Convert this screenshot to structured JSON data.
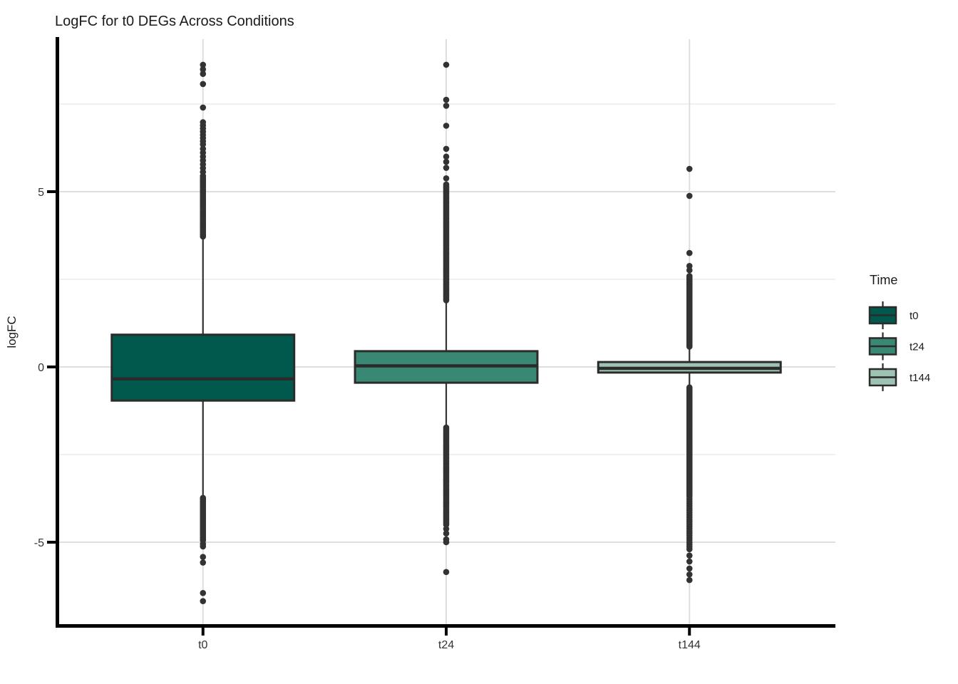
{
  "page": {
    "background": "#ffffff"
  },
  "chart_data": {
    "type": "boxplot",
    "title": "LogFC for t0 DEGs Across Conditions",
    "xlabel": "",
    "ylabel": "logFC",
    "categories": [
      "t0",
      "t24",
      "t144"
    ],
    "y_axis": {
      "major_ticks": [
        5,
        0,
        -5
      ],
      "major_tick_labels": [
        "5",
        "0",
        "-5"
      ],
      "minor_ticks": [
        7.5,
        2.5,
        -2.5
      ],
      "ylim": [
        -7.38,
        9.35
      ]
    },
    "grid": {
      "major_color": "#dedede",
      "minor_color": "#ececec",
      "vertical_major": true
    },
    "style": {
      "axis_color": "#000000",
      "box_stroke": "#2b2b2b",
      "whisker_color": "#333333",
      "outlier_color": "#333333"
    },
    "legend": {
      "title": "Time",
      "position": "right"
    },
    "groups": [
      {
        "name": "t0",
        "fill": "#00594C",
        "stats": {
          "q1": -0.96,
          "median": -0.34,
          "q3": 0.92,
          "whisker_low": -3.7,
          "whisker_high": 3.7
        },
        "outliers": {
          "points": [
            8.62,
            8.49,
            8.36,
            8.07,
            7.4,
            -5.05,
            -5.12,
            -5.42,
            -5.58,
            -6.45,
            -6.68
          ],
          "ranges": [
            {
              "from": 6.35,
              "to": 7.0,
              "step": 0.09
            },
            {
              "from": 5.45,
              "to": 6.28,
              "step": 0.11
            },
            {
              "from": 3.72,
              "to": 5.4,
              "step": 0.042
            },
            {
              "from": -4.95,
              "to": -3.72,
              "step": 0.045
            }
          ]
        }
      },
      {
        "name": "t24",
        "fill": "#398874",
        "stats": {
          "q1": -0.45,
          "median": 0.03,
          "q3": 0.45,
          "whisker_low": -1.67,
          "whisker_high": 1.87
        },
        "outliers": {
          "points": [
            8.62,
            7.62,
            7.45,
            6.88,
            6.22,
            6.0,
            5.85,
            5.68,
            5.38,
            -4.62,
            -4.75,
            -4.92,
            -5.0,
            -5.85
          ],
          "ranges": [
            {
              "from": 1.9,
              "to": 5.22,
              "step": 0.038
            },
            {
              "from": -4.5,
              "to": -1.7,
              "step": 0.042
            }
          ]
        }
      },
      {
        "name": "t144",
        "fill": "#9EC3B3",
        "stats": {
          "q1": -0.16,
          "median": -0.04,
          "q3": 0.14,
          "whisker_low": -0.52,
          "whisker_high": 0.51
        },
        "outliers": {
          "points": [
            5.65,
            4.88,
            3.25,
            2.88,
            2.76,
            -5.38,
            -5.55,
            -5.75,
            -5.92,
            -6.08
          ],
          "ranges": [
            {
              "from": 0.58,
              "to": 2.6,
              "step": 0.038
            },
            {
              "from": -3.7,
              "to": -0.57,
              "step": 0.038
            },
            {
              "from": -5.2,
              "to": -3.75,
              "step": 0.065
            }
          ]
        }
      }
    ]
  }
}
